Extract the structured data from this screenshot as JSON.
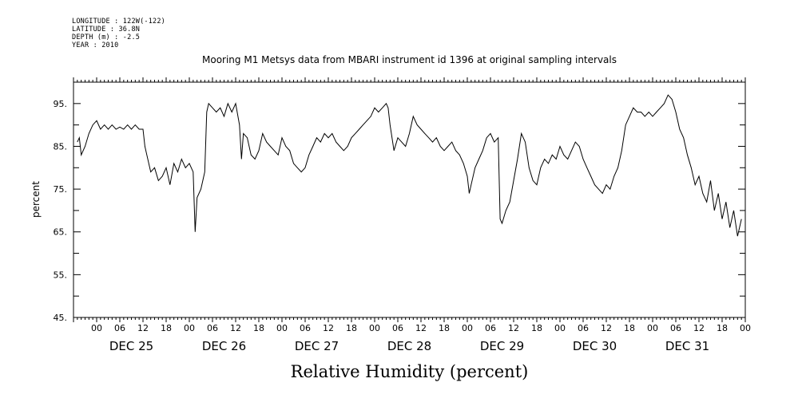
{
  "meta": {
    "longitude": "LONGITUDE : 122W(-122)",
    "latitude": "LATITUDE : 36.8N",
    "depth": "DEPTH (m) : -2.5",
    "year": "YEAR : 2010"
  },
  "chart_data": {
    "type": "line",
    "title": "Mooring M1 Metsys data from MBARI instrument id 1396 at original sampling intervals",
    "xlabel": "Relative Humidity (percent)",
    "ylabel": "percent",
    "ylim": [
      45,
      100
    ],
    "yticks": [
      45,
      55,
      65,
      75,
      85,
      95
    ],
    "ytick_labels": [
      "45.",
      "55.",
      "65.",
      "75.",
      "85.",
      "95."
    ],
    "x_unit": "hours since Dec 25 00:00, 2010",
    "xlim": [
      -6,
      168
    ],
    "hour_tick_labels": [
      "00",
      "06",
      "12",
      "18"
    ],
    "day_labels": [
      "DEC 25",
      "DEC 26",
      "DEC 27",
      "DEC 28",
      "DEC 29",
      "DEC 30",
      "DEC 31"
    ],
    "grid": false,
    "series": [
      {
        "points": [
          [
            -5,
            86
          ],
          [
            -4.5,
            87
          ],
          [
            -4,
            83
          ],
          [
            -3,
            85
          ],
          [
            -2,
            88
          ],
          [
            -1,
            90
          ],
          [
            0,
            91
          ],
          [
            1,
            89
          ],
          [
            2,
            90
          ],
          [
            3,
            89
          ],
          [
            4,
            90
          ],
          [
            5,
            89
          ],
          [
            6,
            89.5
          ],
          [
            7,
            89
          ],
          [
            8,
            90
          ],
          [
            9,
            89
          ],
          [
            10,
            90
          ],
          [
            11,
            89
          ],
          [
            12,
            89
          ],
          [
            12.5,
            85
          ],
          [
            13,
            83
          ],
          [
            14,
            79
          ],
          [
            15,
            80
          ],
          [
            16,
            77
          ],
          [
            17,
            78
          ],
          [
            18,
            80
          ],
          [
            19,
            76
          ],
          [
            20,
            81
          ],
          [
            21,
            79
          ],
          [
            22,
            82
          ],
          [
            23,
            80
          ],
          [
            24,
            81
          ],
          [
            25,
            79
          ],
          [
            25.5,
            65
          ],
          [
            26,
            73
          ],
          [
            27,
            75
          ],
          [
            28,
            79
          ],
          [
            28.5,
            93
          ],
          [
            29,
            95
          ],
          [
            30,
            94
          ],
          [
            31,
            93
          ],
          [
            32,
            94
          ],
          [
            33,
            92
          ],
          [
            34,
            95
          ],
          [
            35,
            93
          ],
          [
            36,
            95
          ],
          [
            37,
            90
          ],
          [
            37.5,
            82
          ],
          [
            38,
            88
          ],
          [
            39,
            87
          ],
          [
            40,
            83
          ],
          [
            41,
            82
          ],
          [
            42,
            84
          ],
          [
            43,
            88
          ],
          [
            44,
            86
          ],
          [
            45,
            85
          ],
          [
            46,
            84
          ],
          [
            47,
            83
          ],
          [
            48,
            87
          ],
          [
            49,
            85
          ],
          [
            50,
            84
          ],
          [
            51,
            81
          ],
          [
            52,
            80
          ],
          [
            53,
            79
          ],
          [
            54,
            80
          ],
          [
            55,
            83
          ],
          [
            56,
            85
          ],
          [
            57,
            87
          ],
          [
            58,
            86
          ],
          [
            59,
            88
          ],
          [
            60,
            87
          ],
          [
            61,
            88
          ],
          [
            62,
            86
          ],
          [
            63,
            85
          ],
          [
            64,
            84
          ],
          [
            65,
            85
          ],
          [
            66,
            87
          ],
          [
            67,
            88
          ],
          [
            68,
            89
          ],
          [
            69,
            90
          ],
          [
            70,
            91
          ],
          [
            71,
            92
          ],
          [
            72,
            94
          ],
          [
            73,
            93
          ],
          [
            74,
            94
          ],
          [
            75,
            95
          ],
          [
            75.5,
            94
          ],
          [
            76,
            90
          ],
          [
            77,
            84
          ],
          [
            78,
            87
          ],
          [
            79,
            86
          ],
          [
            80,
            85
          ],
          [
            81,
            88
          ],
          [
            82,
            92
          ],
          [
            83,
            90
          ],
          [
            84,
            89
          ],
          [
            85,
            88
          ],
          [
            86,
            87
          ],
          [
            87,
            86
          ],
          [
            88,
            87
          ],
          [
            89,
            85
          ],
          [
            90,
            84
          ],
          [
            91,
            85
          ],
          [
            92,
            86
          ],
          [
            93,
            84
          ],
          [
            94,
            83
          ],
          [
            95,
            81
          ],
          [
            96,
            78
          ],
          [
            96.5,
            74
          ],
          [
            97,
            76
          ],
          [
            98,
            80
          ],
          [
            99,
            82
          ],
          [
            100,
            84
          ],
          [
            101,
            87
          ],
          [
            102,
            88
          ],
          [
            103,
            86
          ],
          [
            104,
            87
          ],
          [
            104.5,
            68
          ],
          [
            105,
            67
          ],
          [
            106,
            70
          ],
          [
            107,
            72
          ],
          [
            108,
            77
          ],
          [
            109,
            82
          ],
          [
            110,
            88
          ],
          [
            111,
            86
          ],
          [
            112,
            80
          ],
          [
            113,
            77
          ],
          [
            114,
            76
          ],
          [
            115,
            80
          ],
          [
            116,
            82
          ],
          [
            117,
            81
          ],
          [
            118,
            83
          ],
          [
            119,
            82
          ],
          [
            120,
            85
          ],
          [
            121,
            83
          ],
          [
            122,
            82
          ],
          [
            123,
            84
          ],
          [
            124,
            86
          ],
          [
            125,
            85
          ],
          [
            126,
            82
          ],
          [
            127,
            80
          ],
          [
            128,
            78
          ],
          [
            129,
            76
          ],
          [
            130,
            75
          ],
          [
            131,
            74
          ],
          [
            132,
            76
          ],
          [
            133,
            75
          ],
          [
            134,
            78
          ],
          [
            135,
            80
          ],
          [
            136,
            84
          ],
          [
            137,
            90
          ],
          [
            138,
            92
          ],
          [
            139,
            94
          ],
          [
            140,
            93
          ],
          [
            141,
            93
          ],
          [
            142,
            92
          ],
          [
            143,
            93
          ],
          [
            144,
            92
          ],
          [
            145,
            93
          ],
          [
            146,
            94
          ],
          [
            147,
            95
          ],
          [
            148,
            97
          ],
          [
            149,
            96
          ],
          [
            150,
            93
          ],
          [
            151,
            89
          ],
          [
            152,
            87
          ],
          [
            153,
            83
          ],
          [
            154,
            80
          ],
          [
            155,
            76
          ],
          [
            156,
            78
          ],
          [
            157,
            74
          ],
          [
            158,
            72
          ],
          [
            159,
            77
          ],
          [
            160,
            70
          ],
          [
            161,
            74
          ],
          [
            162,
            68
          ],
          [
            163,
            72
          ],
          [
            164,
            66
          ],
          [
            165,
            70
          ],
          [
            166,
            64
          ],
          [
            167,
            68
          ]
        ]
      }
    ]
  }
}
